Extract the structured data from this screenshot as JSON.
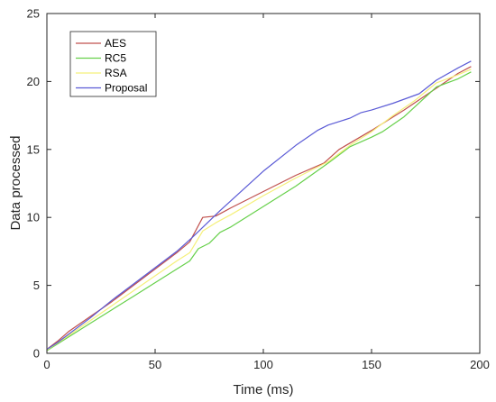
{
  "chart_data": {
    "type": "line",
    "title": "",
    "xlabel": "Time (ms)",
    "ylabel": "Data processed",
    "xlim": [
      0,
      200
    ],
    "ylim": [
      0,
      25
    ],
    "xticks": [
      0,
      50,
      100,
      150,
      200
    ],
    "yticks": [
      0,
      5,
      10,
      15,
      20,
      25
    ],
    "grid": false,
    "legend_position": "top-left",
    "series": [
      {
        "name": "AES",
        "color": "#c0504d",
        "x": [
          0,
          5,
          10,
          20,
          30,
          40,
          50,
          60,
          66,
          72,
          78,
          85,
          100,
          115,
          128,
          135,
          150,
          165,
          178,
          190,
          196
        ],
        "y": [
          0.3,
          0.9,
          1.6,
          2.7,
          3.8,
          5.0,
          6.2,
          7.4,
          8.2,
          10.0,
          10.1,
          10.7,
          11.9,
          13.1,
          14.0,
          15.0,
          16.4,
          17.9,
          19.3,
          20.6,
          21.1
        ]
      },
      {
        "name": "RC5",
        "color": "#66d04a",
        "x": [
          0,
          10,
          20,
          30,
          40,
          50,
          60,
          66,
          70,
          75,
          80,
          85,
          100,
          115,
          130,
          140,
          150,
          155,
          165,
          180,
          190,
          196
        ],
        "y": [
          0.2,
          1.2,
          2.2,
          3.2,
          4.2,
          5.2,
          6.2,
          6.8,
          7.7,
          8.1,
          8.9,
          9.3,
          10.8,
          12.3,
          14.0,
          15.2,
          15.9,
          16.3,
          17.4,
          19.6,
          20.2,
          20.7
        ]
      },
      {
        "name": "RSA",
        "color": "#f5f07a",
        "x": [
          0,
          10,
          20,
          30,
          40,
          50,
          60,
          66,
          72,
          78,
          85,
          100,
          115,
          130,
          140,
          150,
          160,
          170,
          180,
          190,
          196
        ],
        "y": [
          0.25,
          1.3,
          2.4,
          3.5,
          4.6,
          5.7,
          6.8,
          7.4,
          9.0,
          9.6,
          10.2,
          11.6,
          12.9,
          14.1,
          15.3,
          16.3,
          17.5,
          18.6,
          19.9,
          20.5,
          20.9
        ]
      },
      {
        "name": "Proposal",
        "color": "#5b5bd6",
        "x": [
          0,
          5,
          10,
          20,
          30,
          40,
          50,
          60,
          67,
          80,
          100,
          115,
          125,
          130,
          140,
          145,
          150,
          160,
          172,
          180,
          190,
          196
        ],
        "y": [
          0.3,
          0.8,
          1.4,
          2.6,
          3.9,
          5.1,
          6.3,
          7.5,
          8.5,
          10.5,
          13.4,
          15.3,
          16.4,
          16.8,
          17.3,
          17.7,
          17.9,
          18.4,
          19.1,
          20.1,
          21.0,
          21.5
        ]
      }
    ]
  }
}
